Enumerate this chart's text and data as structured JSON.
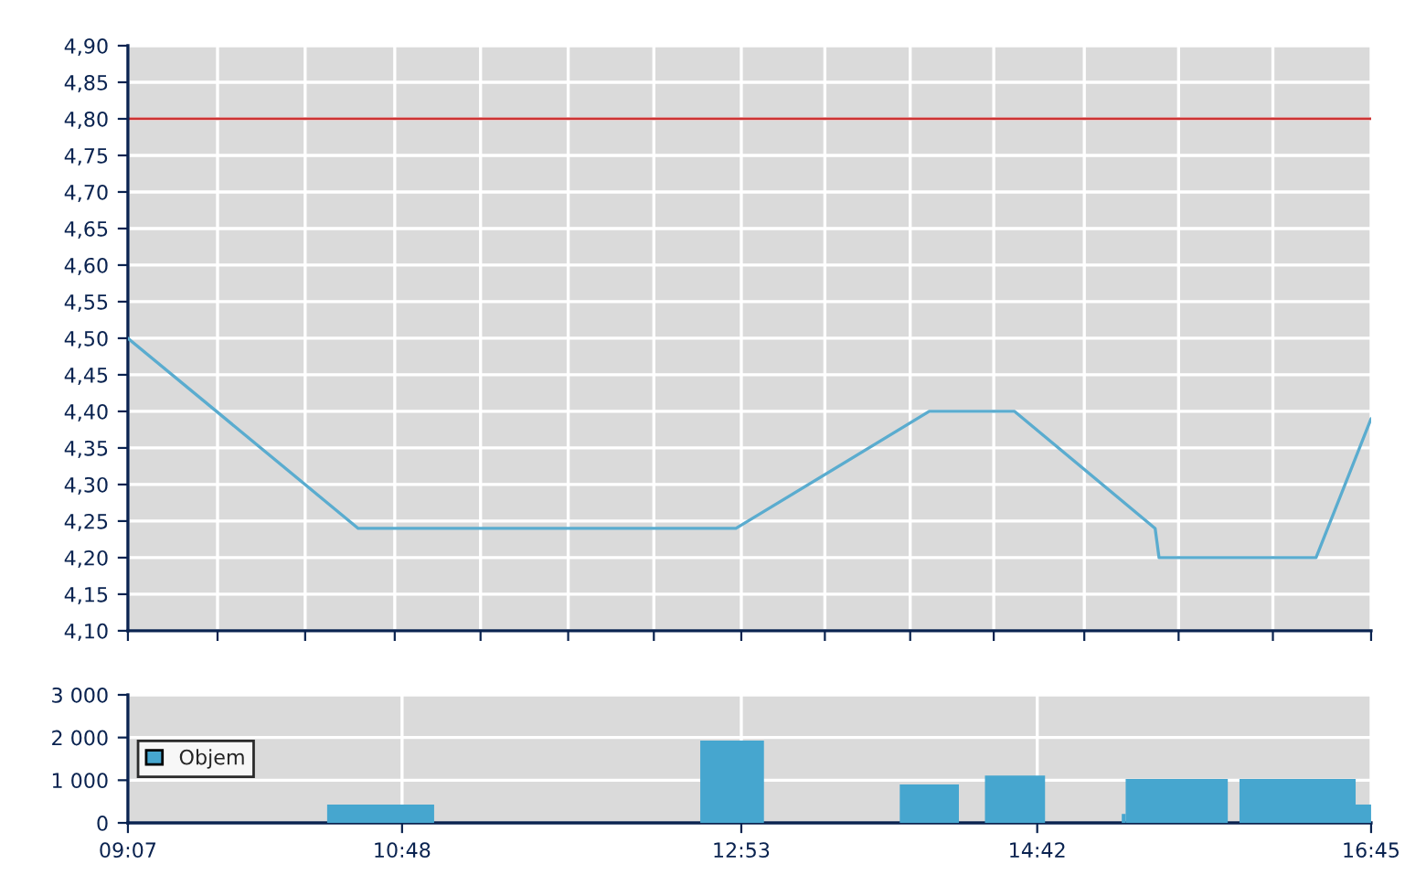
{
  "chart_data": [
    {
      "type": "line",
      "x": [
        9.1167,
        10.531,
        12.85,
        14.037,
        14.561,
        15.424,
        15.448,
        16.412,
        16.75
      ],
      "series": [
        {
          "color": "#5aaccf",
          "values": [
            4.5,
            4.24,
            4.24,
            4.4,
            4.4,
            4.24,
            4.2,
            4.2,
            4.39
          ]
        }
      ],
      "ref_lines": [
        {
          "axis": "y",
          "value": 4.8,
          "color": "#cc3333"
        }
      ],
      "xlim": [
        9.1167,
        16.75
      ],
      "xticks": [
        {
          "value": 9.1167,
          "label": null
        },
        {
          "value": 9.667,
          "label": null
        },
        {
          "value": 10.205,
          "label": null
        },
        {
          "value": 10.755,
          "label": null
        },
        {
          "value": 11.282,
          "label": null
        },
        {
          "value": 11.82,
          "label": null
        },
        {
          "value": 12.346,
          "label": null
        },
        {
          "value": 12.883,
          "label": null
        },
        {
          "value": 13.396,
          "label": null
        },
        {
          "value": 13.92,
          "label": null
        },
        {
          "value": 14.433,
          "label": null
        },
        {
          "value": 14.989,
          "label": null
        },
        {
          "value": 15.568,
          "label": null
        },
        {
          "value": 16.147,
          "label": null
        },
        {
          "value": 16.75,
          "label": null
        }
      ],
      "ylim": [
        4.1,
        4.9
      ],
      "yticks": [
        {
          "value": 4.1,
          "label": "4,10"
        },
        {
          "value": 4.15,
          "label": "4,15"
        },
        {
          "value": 4.2,
          "label": "4,20"
        },
        {
          "value": 4.25,
          "label": "4,25"
        },
        {
          "value": 4.3,
          "label": "4,30"
        },
        {
          "value": 4.35,
          "label": "4,35"
        },
        {
          "value": 4.4,
          "label": "4,40"
        },
        {
          "value": 4.45,
          "label": "4,45"
        },
        {
          "value": 4.5,
          "label": "4,50"
        },
        {
          "value": 4.55,
          "label": "4,55"
        },
        {
          "value": 4.6,
          "label": "4,60"
        },
        {
          "value": 4.65,
          "label": "4,65"
        },
        {
          "value": 4.7,
          "label": "4,70"
        },
        {
          "value": 4.75,
          "label": "4,75"
        },
        {
          "value": 4.8,
          "label": "4,80"
        },
        {
          "value": 4.85,
          "label": "4,85"
        },
        {
          "value": 4.9,
          "label": "4,90"
        }
      ],
      "tick_labels": "y",
      "grid": true,
      "line_style": "solid"
    },
    {
      "type": "histogram",
      "bins": [
        10.34,
        10.997,
        12.631,
        13.022,
        13.856,
        14.219,
        14.379,
        14.748,
        15.219,
        15.243,
        15.87,
        15.942,
        16.655,
        16.75
      ],
      "series": [
        {
          "name": "Objem",
          "color": "#46a6cf",
          "values": [
            430,
            0,
            1930,
            0,
            900,
            0,
            1110,
            0,
            210,
            1030,
            0,
            1030,
            430
          ]
        }
      ],
      "xlim": [
        9.1167,
        16.75
      ],
      "xticks": [
        {
          "value": 9.1167,
          "label": "09:07"
        },
        {
          "value": 10.8,
          "label": "10:48"
        },
        {
          "value": 12.883,
          "label": "12:53"
        },
        {
          "value": 14.7,
          "label": "14:42"
        },
        {
          "value": 16.75,
          "label": "16:45"
        }
      ],
      "ylim": [
        0,
        3000
      ],
      "yticks": [
        0,
        {
          "value": 1000,
          "label": "1 000"
        },
        {
          "value": 2000,
          "label": "2 000"
        },
        {
          "value": 3000,
          "label": "3 000"
        }
      ],
      "grid": true,
      "legend": "left"
    }
  ]
}
